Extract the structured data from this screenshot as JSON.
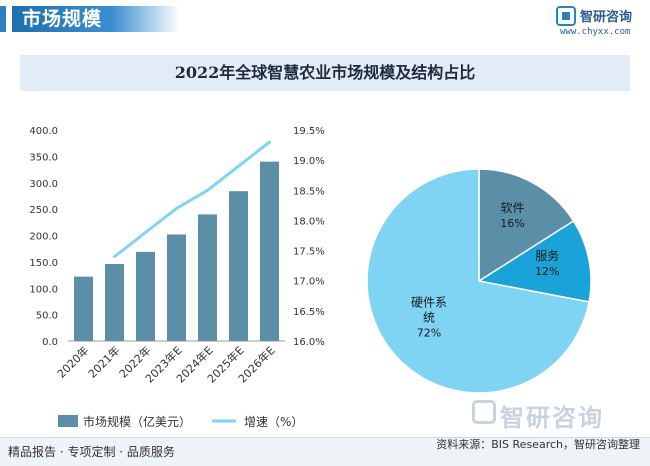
{
  "header": {
    "title": "市场规模"
  },
  "brand": {
    "name": "智研咨询",
    "url": "www.chyxx.com",
    "watermark": "智研咨询"
  },
  "chart_title": "2022年全球智慧农业市场规模及结构占比",
  "chart_data": [
    {
      "type": "bar",
      "categories": [
        "2020年",
        "2021年",
        "2022年",
        "2023年E",
        "2024年E",
        "2025年E",
        "2026年E"
      ],
      "series": [
        {
          "name": "市场规模（亿美元）",
          "type": "bar",
          "axis": "left",
          "color": "#5b8fa8",
          "values": [
            122,
            146,
            169,
            202,
            240,
            284,
            340
          ]
        },
        {
          "name": "增速（%）",
          "type": "line",
          "axis": "right",
          "color": "#7fd3f3",
          "values": [
            null,
            17.4,
            17.8,
            18.2,
            18.5,
            18.9,
            19.3
          ]
        }
      ],
      "ylim": [
        0,
        400
      ],
      "y_ticks": [
        "0.0",
        "50.0",
        "100.0",
        "150.0",
        "200.0",
        "250.0",
        "300.0",
        "350.0",
        "400.0"
      ],
      "y2lim": [
        16.0,
        19.5
      ],
      "y2_ticks": [
        "16.0%",
        "16.5%",
        "17.0%",
        "17.5%",
        "18.0%",
        "18.5%",
        "19.0%",
        "19.5%"
      ],
      "legend": "bottom"
    },
    {
      "type": "pie",
      "slices": [
        {
          "label": "软件",
          "value": 16,
          "display": "16%",
          "color": "#5b8fa8"
        },
        {
          "label": "服务",
          "value": 12,
          "display": "12%",
          "color": "#1aa3d9"
        },
        {
          "label": "硬件系统",
          "label_lines": [
            "硬件系",
            "统"
          ],
          "value": 72,
          "display": "72%",
          "color": "#7fd3f3"
        }
      ]
    }
  ],
  "footer": {
    "left": "精品报告 · 专项定制 · 品质服务",
    "source": "资料来源：BIS Research，智研咨询整理"
  }
}
